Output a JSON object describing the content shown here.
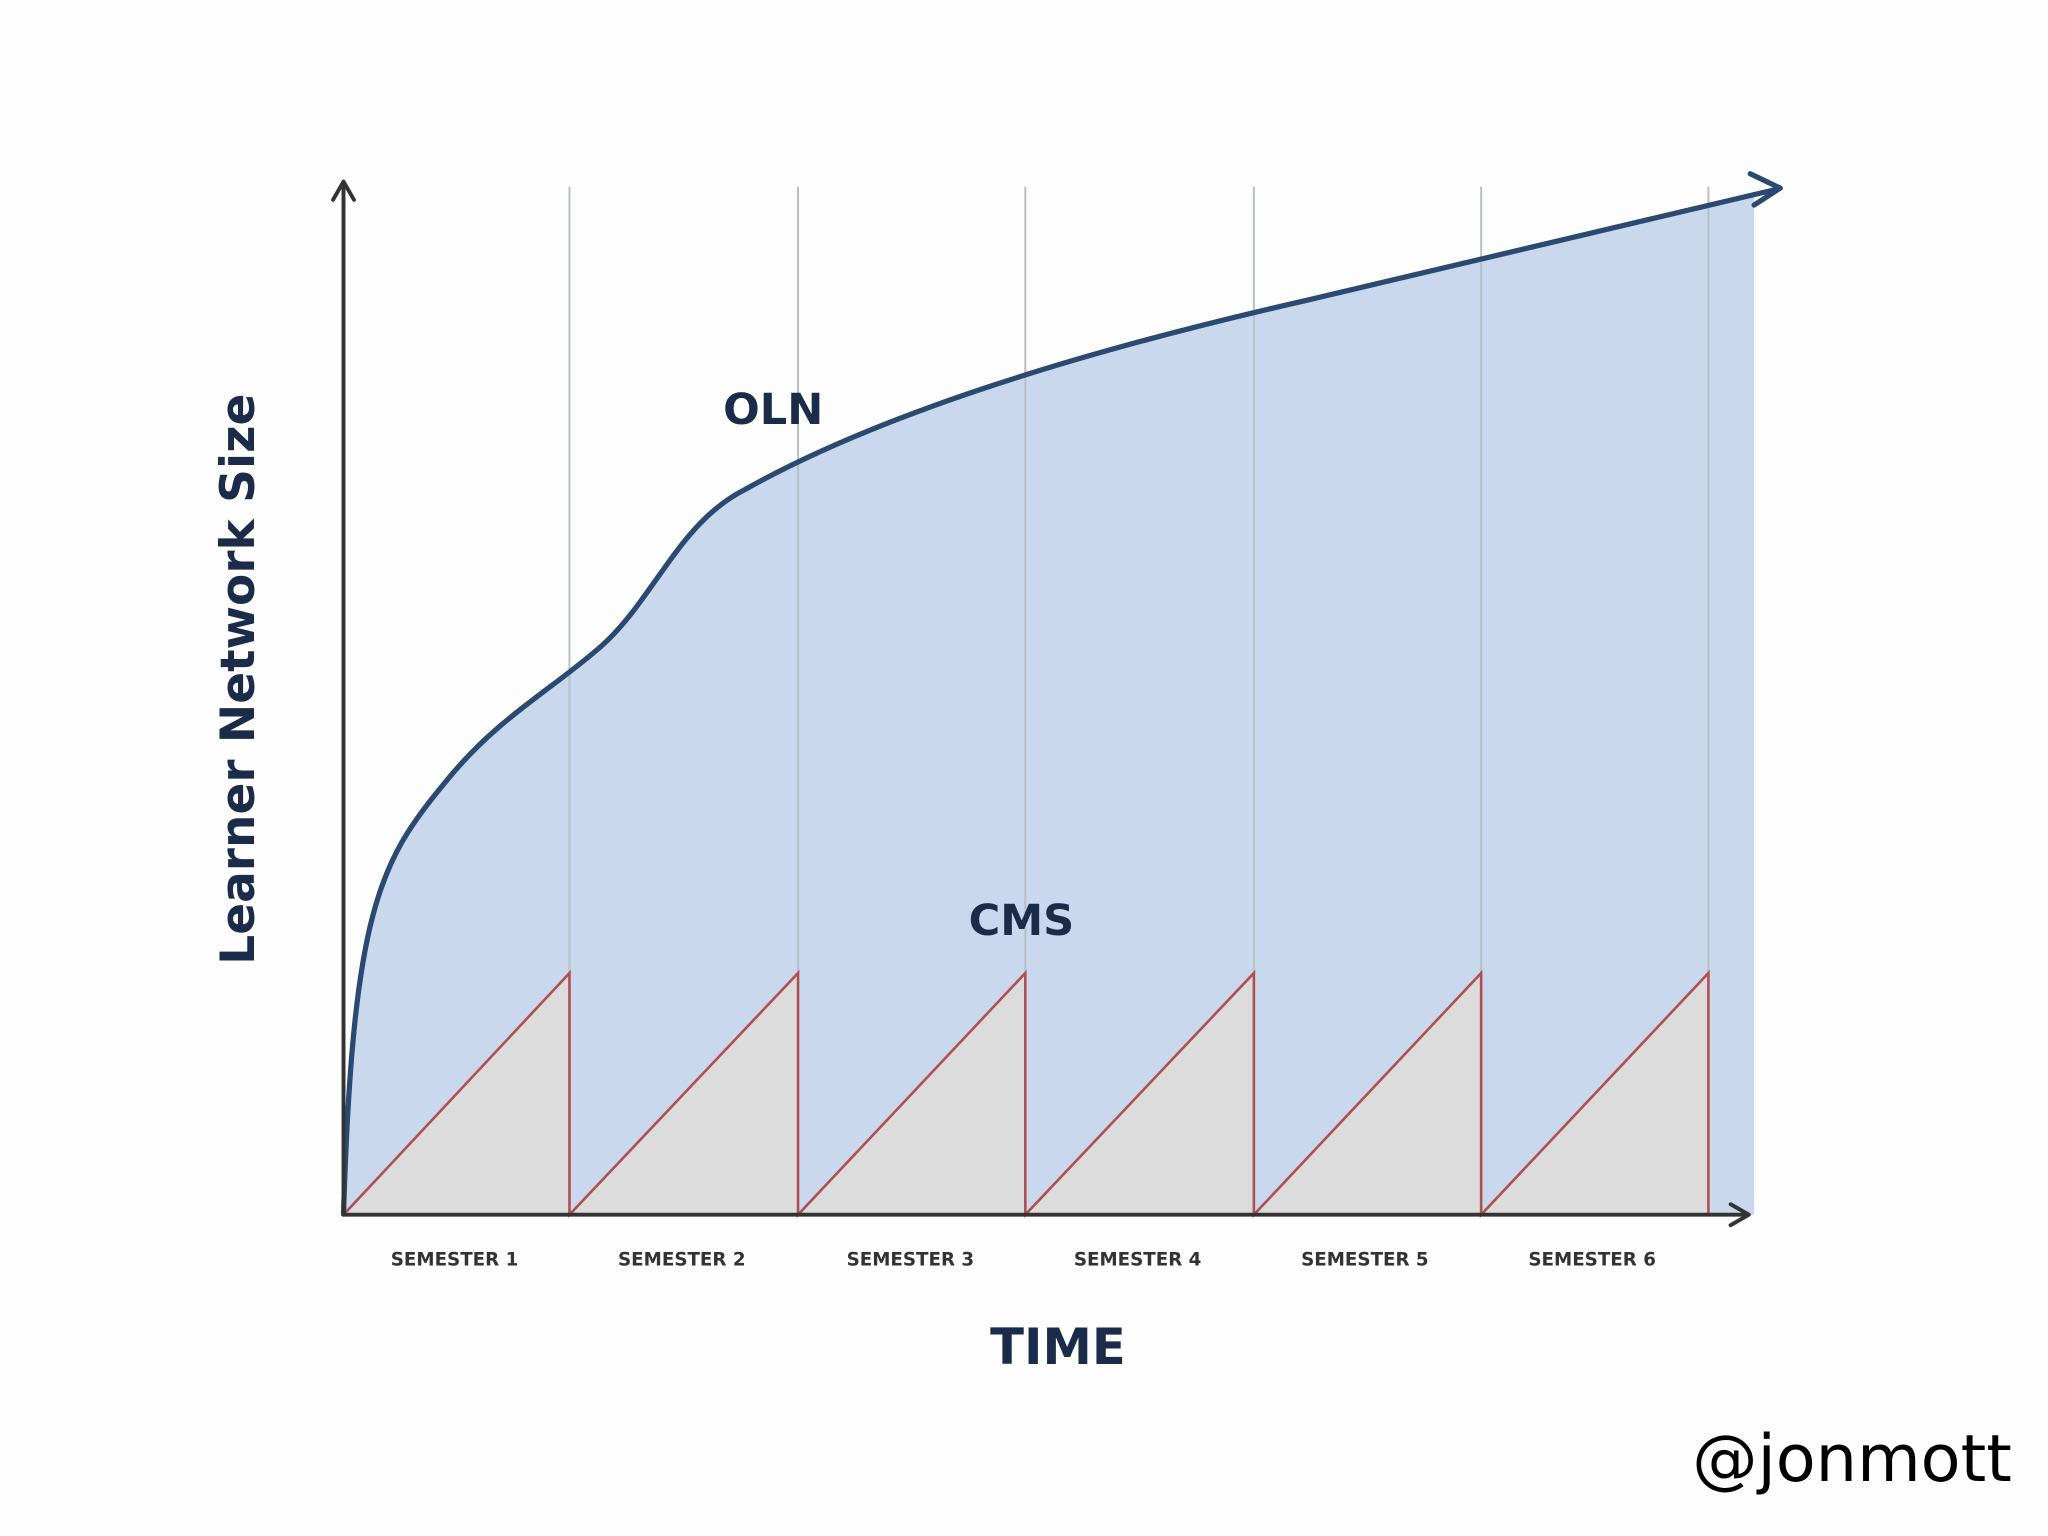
{
  "y_axis_label": "Learner Network Size",
  "curve_labels": {
    "oln": "OLN",
    "cms": "CMS"
  },
  "x_axis": {
    "categories": [
      "SEMESTER 1",
      "SEMESTER 2",
      "SEMESTER 3",
      "SEMESTER 4",
      "SEMESTER 5",
      "SEMESTER 6"
    ],
    "title": "TIME"
  },
  "watermark": "@jonmott"
}
